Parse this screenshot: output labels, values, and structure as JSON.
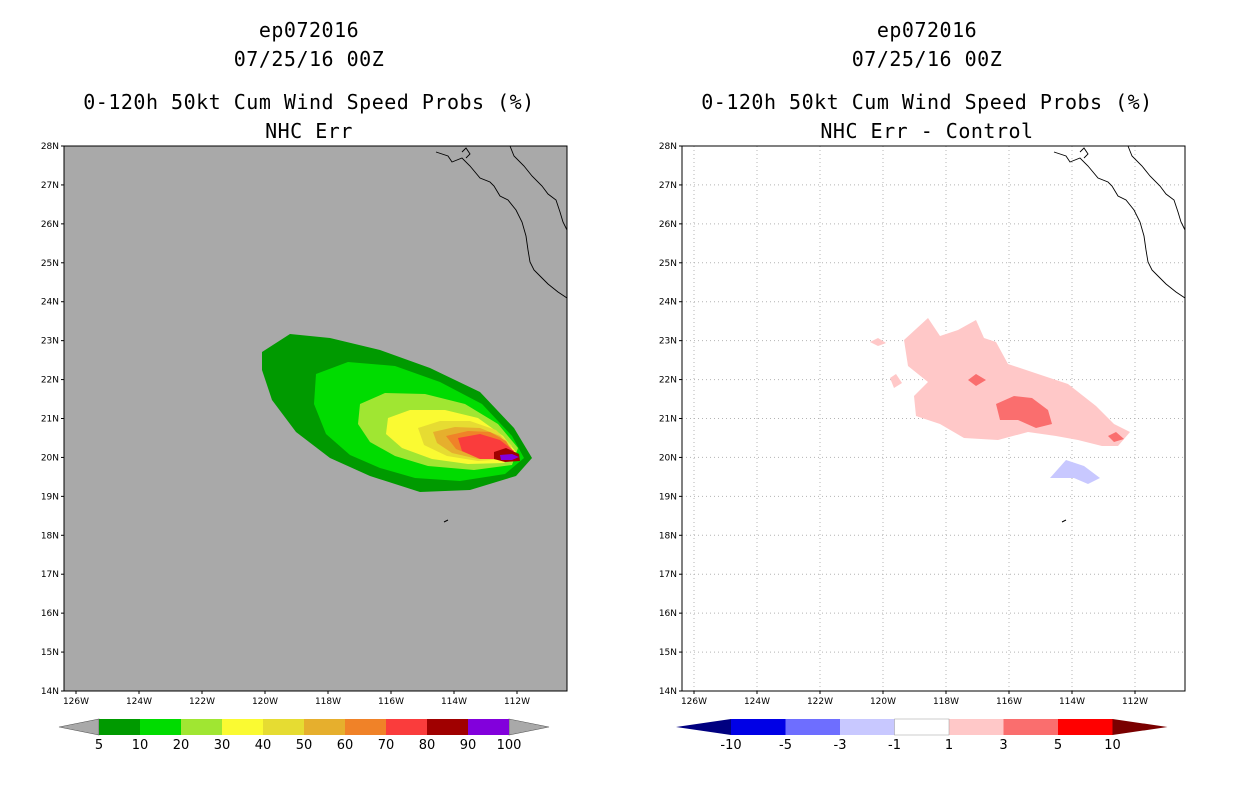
{
  "colors": {
    "land_bg": "#a9a9a9",
    "ocean_bg": "#ffffff",
    "grid": "#b4b4b4"
  },
  "panels": [
    {
      "id": "left",
      "storm_id": "ep072016",
      "datetime": "07/25/16 00Z",
      "product": "0-120h 50kt Cum Wind Speed Probs (%)",
      "subtitle": "NHC Err",
      "lat_labels": [
        "28N",
        "27N",
        "26N",
        "25N",
        "24N",
        "23N",
        "22N",
        "21N",
        "20N",
        "19N",
        "18N",
        "17N",
        "16N",
        "15N",
        "14N"
      ],
      "lon_labels": [
        "126W",
        "124W",
        "122W",
        "120W",
        "118W",
        "116W",
        "114W",
        "112W"
      ],
      "colorbar": {
        "labels": [
          "5",
          "10",
          "20",
          "30",
          "40",
          "50",
          "60",
          "70",
          "80",
          "90",
          "100"
        ],
        "colors": [
          "#009a00",
          "#00dc00",
          "#a0e632",
          "#fafa32",
          "#e6dc32",
          "#e6af2d",
          "#f08228",
          "#fa3c3c",
          "#a00000",
          "#8200dc"
        ]
      }
    },
    {
      "id": "right",
      "storm_id": "ep072016",
      "datetime": "07/25/16 00Z",
      "product": "0-120h 50kt Cum Wind Speed Probs (%)",
      "subtitle": "NHC Err - Control",
      "lat_labels": [
        "28N",
        "27N",
        "26N",
        "25N",
        "24N",
        "23N",
        "22N",
        "21N",
        "20N",
        "19N",
        "18N",
        "17N",
        "16N",
        "15N",
        "14N"
      ],
      "lon_labels": [
        "126W",
        "124W",
        "122W",
        "120W",
        "118W",
        "116W",
        "114W",
        "112W"
      ],
      "colorbar": {
        "labels": [
          "-10",
          "-5",
          "-3",
          "-1",
          "1",
          "3",
          "5",
          "10"
        ],
        "colors": [
          "#0000e6",
          "#6e6eff",
          "#c8c8ff",
          "#ffffff",
          "#ffc8c8",
          "#fa6e6e",
          "#ff0000"
        ]
      }
    }
  ]
}
